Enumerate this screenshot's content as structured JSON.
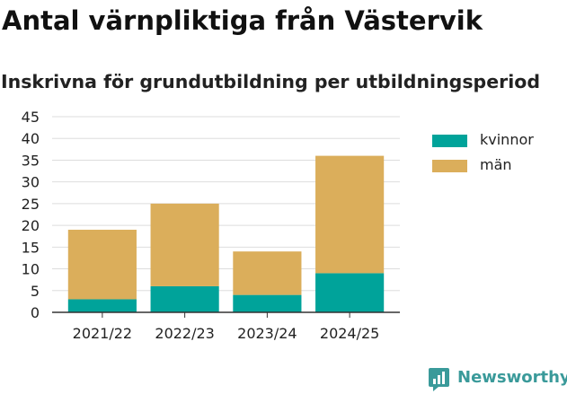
{
  "title": "Antal värnpliktiga från Västervik",
  "subtitle": "Inskrivna för grundutbildning per utbildningsperiod",
  "brand": {
    "name": "Newsworthy",
    "icon": "newsworthy-logo-icon",
    "color": "#3a9a9a"
  },
  "chart_data": {
    "type": "bar",
    "stacked": true,
    "categories": [
      "2021/22",
      "2022/23",
      "2023/24",
      "2024/25"
    ],
    "series": [
      {
        "name": "kvinnor",
        "color": "#00a39a",
        "values": [
          3,
          6,
          4,
          9
        ]
      },
      {
        "name": "män",
        "color": "#dbae5b",
        "values": [
          16,
          19,
          10,
          27
        ]
      }
    ],
    "ylim": [
      0,
      45
    ],
    "yticks": [
      0,
      5,
      10,
      15,
      20,
      25,
      30,
      35,
      40,
      45
    ],
    "grid": true,
    "legend": "right"
  }
}
